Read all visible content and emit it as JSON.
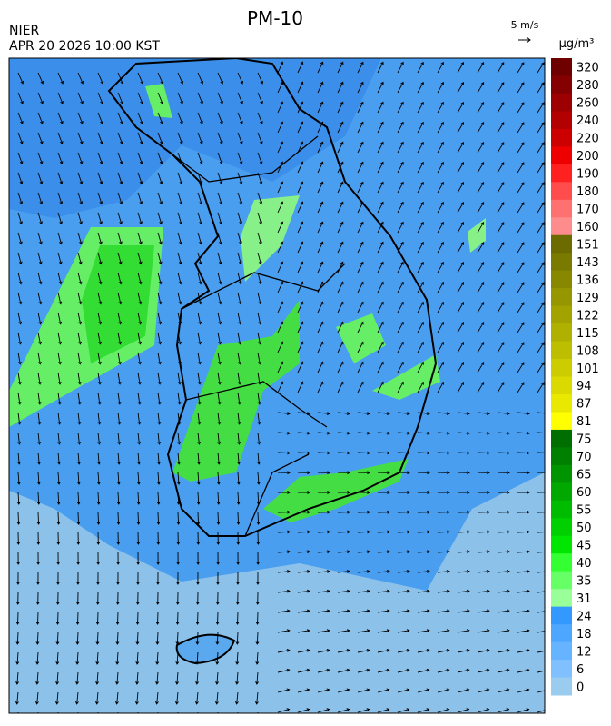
{
  "header": {
    "title": "PM-10",
    "agency": "NIER",
    "timestamp": "APR 20 2026 10:00 KST",
    "wind_scale": "5 m/s"
  },
  "legend": {
    "unit": "µg/m³",
    "items": [
      {
        "label": 320,
        "color": "#6e0000"
      },
      {
        "label": 280,
        "color": "#850000"
      },
      {
        "label": 260,
        "color": "#9c0000"
      },
      {
        "label": 240,
        "color": "#b30000"
      },
      {
        "label": 220,
        "color": "#cc0000"
      },
      {
        "label": 200,
        "color": "#ee0000"
      },
      {
        "label": 190,
        "color": "#ff2020"
      },
      {
        "label": 180,
        "color": "#ff4d4d"
      },
      {
        "label": 170,
        "color": "#ff7070"
      },
      {
        "label": 160,
        "color": "#ff8c8c"
      },
      {
        "label": 151,
        "color": "#6b6b00"
      },
      {
        "label": 143,
        "color": "#7a7a00"
      },
      {
        "label": 136,
        "color": "#888800"
      },
      {
        "label": 129,
        "color": "#969600"
      },
      {
        "label": 122,
        "color": "#a3a300"
      },
      {
        "label": 115,
        "color": "#b0b000"
      },
      {
        "label": 108,
        "color": "#bebe00"
      },
      {
        "label": 101,
        "color": "#cccc00"
      },
      {
        "label": 94,
        "color": "#dada00"
      },
      {
        "label": 87,
        "color": "#e8e800"
      },
      {
        "label": 81,
        "color": "#ffff00"
      },
      {
        "label": 75,
        "color": "#006e00"
      },
      {
        "label": 70,
        "color": "#008000"
      },
      {
        "label": 65,
        "color": "#009400"
      },
      {
        "label": 60,
        "color": "#00a800"
      },
      {
        "label": 55,
        "color": "#00bc00"
      },
      {
        "label": 50,
        "color": "#00d000"
      },
      {
        "label": 45,
        "color": "#00e600"
      },
      {
        "label": 40,
        "color": "#33ff33"
      },
      {
        "label": 35,
        "color": "#66ff66"
      },
      {
        "label": 31,
        "color": "#99ff99"
      },
      {
        "label": 24,
        "color": "#3399ff"
      },
      {
        "label": 18,
        "color": "#4da6ff"
      },
      {
        "label": 12,
        "color": "#66b3ff"
      },
      {
        "label": 6,
        "color": "#80c0ff"
      },
      {
        "label": 0,
        "color": "#99ccee"
      }
    ]
  }
}
